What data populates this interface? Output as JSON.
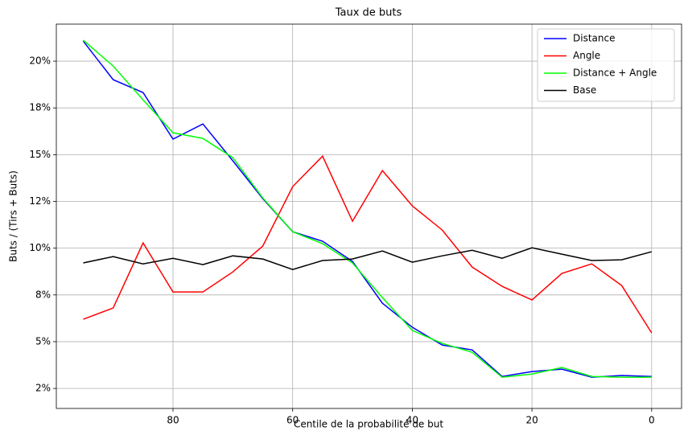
{
  "chart_data": {
    "type": "line",
    "title": "Taux de buts",
    "x_label": "Centile de la probabilité de but",
    "y_label": "Buts / (Tirs + Buts)",
    "x": [
      95,
      90,
      85,
      80,
      75,
      70,
      65,
      60,
      55,
      50,
      45,
      40,
      35,
      30,
      25,
      20,
      15,
      10,
      5,
      0
    ],
    "series": [
      {
        "name": "Distance",
        "color": "#0000ff",
        "values": [
          21.07,
          19.01,
          18.32,
          15.83,
          16.64,
          14.67,
          12.65,
          10.88,
          10.37,
          9.29,
          7.06,
          5.77,
          4.82,
          4.56,
          3.14,
          3.4,
          3.53,
          3.1,
          3.19,
          3.14
        ]
      },
      {
        "name": "Angle",
        "color": "#ff0000",
        "values": [
          6.2,
          6.8,
          10.28,
          7.66,
          7.66,
          8.73,
          10.11,
          13.29,
          14.92,
          11.44,
          14.15,
          12.26,
          10.97,
          8.99,
          7.96,
          7.23,
          8.65,
          9.16,
          8.0,
          5.47
        ]
      },
      {
        "name": "Distance + Angle",
        "color": "#00ff00",
        "values": [
          21.12,
          19.74,
          17.93,
          16.17,
          15.87,
          14.84,
          12.69,
          10.88,
          10.24,
          9.21,
          7.36,
          5.6,
          4.91,
          4.43,
          3.1,
          3.27,
          3.62,
          3.14,
          3.1,
          3.1
        ]
      },
      {
        "name": "Base",
        "color": "#000000",
        "values": [
          9.21,
          9.55,
          9.16,
          9.46,
          9.12,
          9.59,
          9.42,
          8.86,
          9.34,
          9.42,
          9.85,
          9.25,
          9.59,
          9.89,
          9.46,
          10.02,
          9.68,
          9.34,
          9.38,
          9.81
        ]
      }
    ],
    "xlim": [
      99.5,
      -5
    ],
    "xticks": [
      80,
      60,
      40,
      20,
      0
    ],
    "ylim": [
      1.43,
      21.98
    ],
    "yticks": [
      {
        "value": 2.5,
        "label": "2%"
      },
      {
        "value": 5,
        "label": "5%"
      },
      {
        "value": 7.5,
        "label": "8%"
      },
      {
        "value": 10,
        "label": "10%"
      },
      {
        "value": 12.5,
        "label": "12%"
      },
      {
        "value": 15,
        "label": "15%"
      },
      {
        "value": 17.5,
        "label": "18%"
      },
      {
        "value": 20,
        "label": "20%"
      }
    ],
    "grid": true,
    "legend": "upper right"
  }
}
